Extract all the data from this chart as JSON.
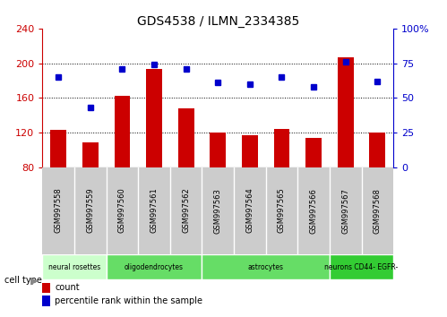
{
  "title": "GDS4538 / ILMN_2334385",
  "samples": [
    "GSM997558",
    "GSM997559",
    "GSM997560",
    "GSM997561",
    "GSM997562",
    "GSM997563",
    "GSM997564",
    "GSM997565",
    "GSM997566",
    "GSM997567",
    "GSM997568"
  ],
  "counts": [
    123,
    108,
    162,
    193,
    148,
    120,
    117,
    124,
    114,
    207,
    120
  ],
  "percentiles": [
    65,
    43,
    71,
    74,
    71,
    61,
    60,
    65,
    58,
    76,
    62
  ],
  "ylim_left": [
    80,
    240
  ],
  "ylim_right": [
    0,
    100
  ],
  "yticks_left": [
    80,
    120,
    160,
    200,
    240
  ],
  "yticks_right": [
    0,
    25,
    50,
    75,
    100
  ],
  "yticklabels_right": [
    "0",
    "25",
    "50",
    "75",
    "100%"
  ],
  "bar_color": "#cc0000",
  "dot_color": "#0000cc",
  "cell_types": [
    {
      "label": "neural rosettes",
      "start": 0,
      "end": 2,
      "color": "#ccffcc"
    },
    {
      "label": "oligodendrocytes",
      "start": 2,
      "end": 5,
      "color": "#66dd66"
    },
    {
      "label": "astrocytes",
      "start": 5,
      "end": 9,
      "color": "#66dd66"
    },
    {
      "label": "neurons CD44- EGFR-",
      "start": 9,
      "end": 11,
      "color": "#33cc33"
    }
  ],
  "ylabel_left_color": "#cc0000",
  "ylabel_right_color": "#0000cc",
  "tick_label_bg": "#cccccc",
  "legend_count_color": "#cc0000",
  "legend_pct_color": "#0000cc"
}
